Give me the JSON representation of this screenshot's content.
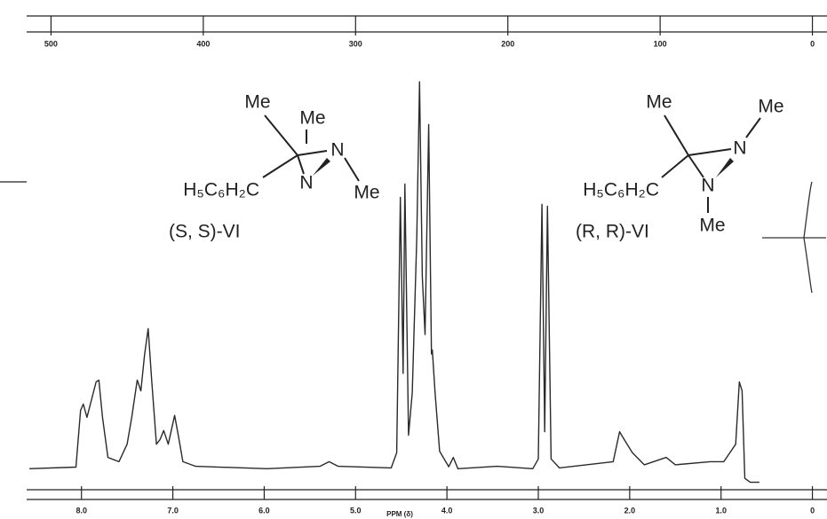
{
  "chart_data": {
    "type": "line",
    "xlabel": "PPM (δ)",
    "x": [
      8.57,
      8.06,
      8.01,
      7.98,
      7.94,
      7.84,
      7.81,
      7.77,
      7.71,
      7.59,
      7.5,
      7.45,
      7.39,
      7.35,
      7.31,
      7.27,
      7.23,
      7.18,
      7.14,
      7.1,
      7.05,
      6.98,
      6.94,
      6.89,
      6.75,
      5.97,
      5.39,
      5.29,
      5.19,
      4.61,
      4.55,
      4.51,
      4.48,
      4.46,
      4.42,
      4.38,
      4.33,
      4.3,
      4.27,
      4.24,
      4.2,
      4.17,
      4.16,
      4.13,
      4.08,
      3.98,
      3.93,
      3.88,
      3.45,
      3.06,
      3.0,
      2.96,
      2.93,
      2.9,
      2.86,
      2.77,
      2.18,
      2.11,
      2.06,
      1.97,
      1.84,
      1.6,
      1.5,
      1.12,
      0.97,
      0.84,
      0.8,
      0.77,
      0.74,
      0.68,
      0.58
    ],
    "series": [
      {
        "color": "#2a2a2a",
        "values": [
          0.5,
          0.9,
          15.5,
          17.1,
          13.7,
          22.8,
          23.3,
          13.7,
          3.4,
          2.3,
          6.8,
          13.7,
          23.3,
          20.5,
          29.7,
          36.5,
          22.8,
          6.8,
          8.0,
          10.3,
          6.8,
          14.2,
          9.1,
          2.3,
          1.1,
          0.5,
          1.1,
          2.3,
          1.1,
          0.7,
          4.6,
          70.3,
          25,
          73.7,
          9.1,
          20,
          60,
          100,
          50,
          35,
          89,
          30,
          31,
          20,
          5,
          1,
          3.4,
          0.5,
          1.1,
          0.5,
          3,
          68.5,
          10,
          68,
          3,
          0.7,
          2.3,
          10,
          8,
          4.6,
          1.5,
          3.4,
          1.5,
          2.3,
          2.3,
          6.8,
          22.8,
          20.5,
          -2,
          -3,
          -3
        ]
      }
    ],
    "xlim": [
      8.6,
      -0.15
    ],
    "xticks": [
      {
        "value": 8,
        "label": "8.0"
      },
      {
        "value": 7,
        "label": "7.0"
      },
      {
        "value": 6,
        "label": "6.0"
      },
      {
        "value": 5,
        "label": "5.0"
      },
      {
        "value": 4,
        "label": "4.0"
      },
      {
        "value": 3,
        "label": "3.0"
      },
      {
        "value": 2,
        "label": "2.0"
      },
      {
        "value": 1,
        "label": "1.0"
      },
      0
    ],
    "x2lim": [
      516,
      -9
    ],
    "x2ticks": [
      500,
      400,
      300,
      200,
      100,
      0
    ],
    "ylim": [
      -4,
      111
    ],
    "annotations": [
      "Me",
      "Me",
      "N",
      "N",
      "Me",
      "H₅C₆H₂C",
      "(S, S)-VI",
      "Me",
      "Me",
      "N",
      "H₅C₆H₂C",
      "N",
      "Me",
      "(R, R)-VI"
    ]
  }
}
